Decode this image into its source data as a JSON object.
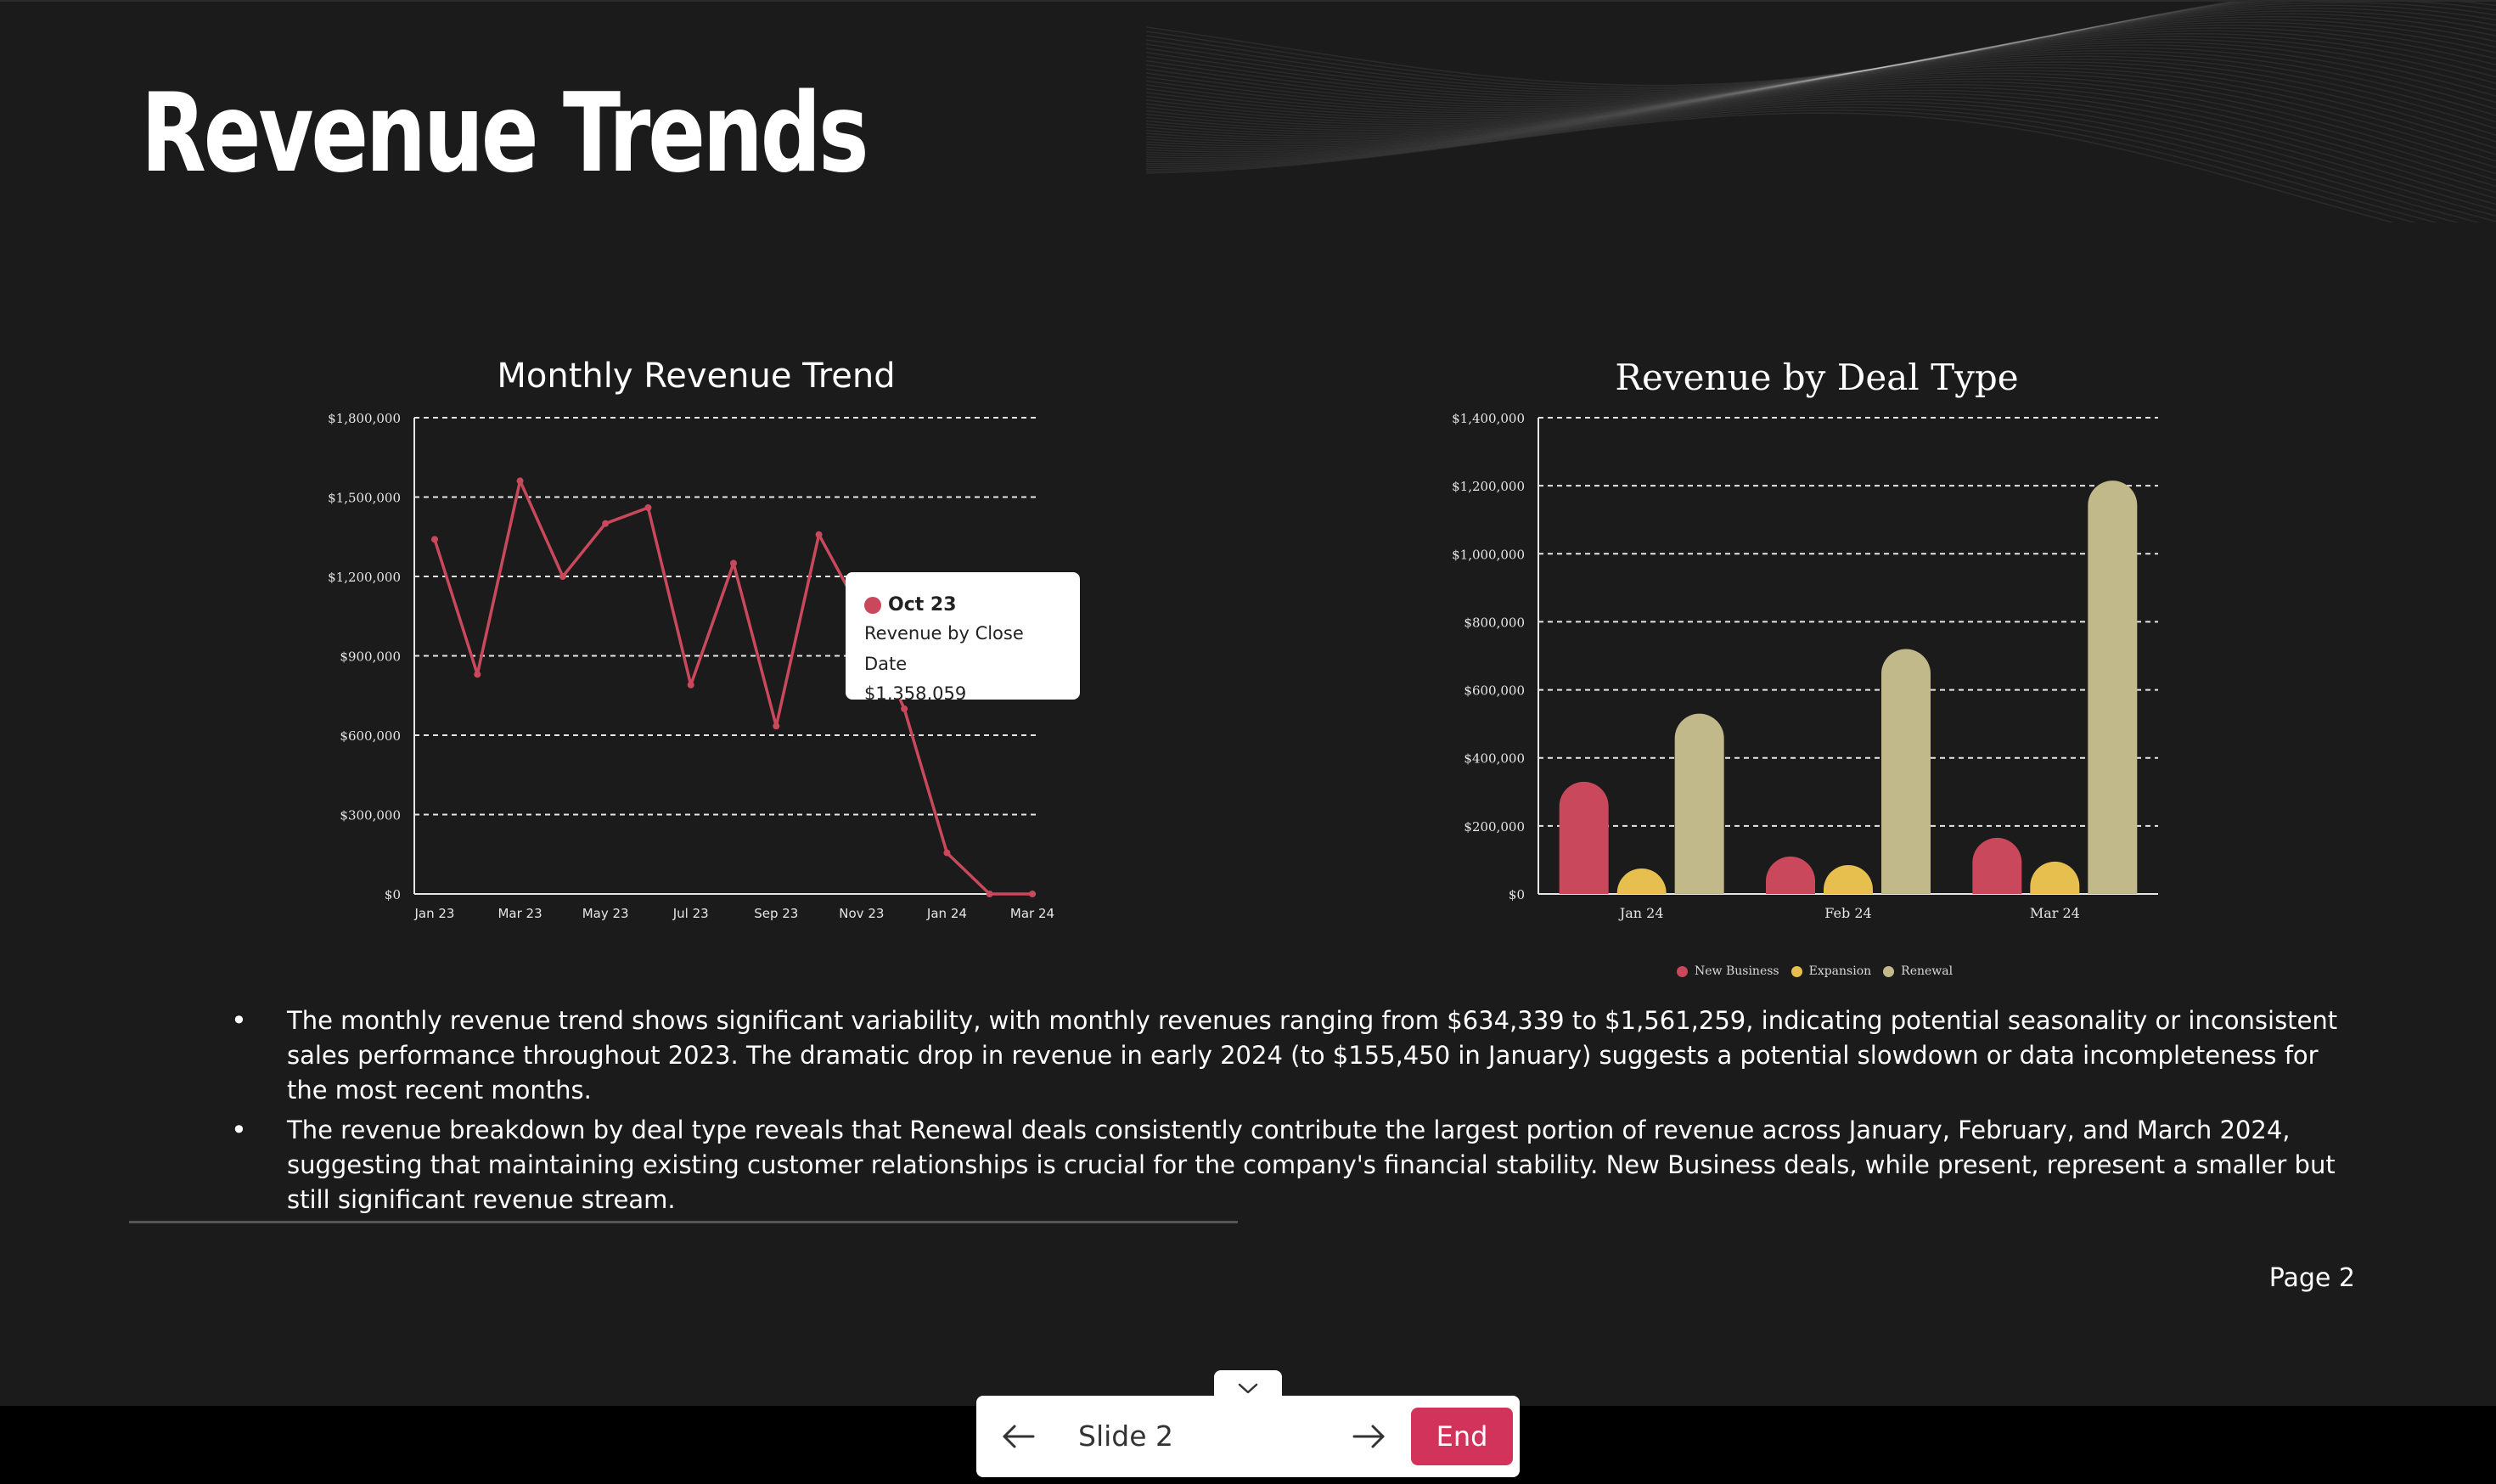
{
  "slide": {
    "title": "Revenue Trends",
    "bullets": [
      "The monthly revenue trend shows significant variability, with monthly revenues ranging from $634,339 to $1,561,259, indicating potential seasonality or inconsistent sales performance throughout 2023. The dramatic drop in revenue in early 2024 (to $155,450 in January) suggests a potential slowdown or data incompleteness for the most recent months.",
      "The revenue breakdown by deal type reveals that Renewal deals consistently contribute the largest portion of revenue across January, February, and March 2024, suggesting that maintaining existing customer relationships is crucial for the company's financial stability. New Business deals, while present, represent a smaller but still significant revenue stream."
    ],
    "bullet_glyph": "•",
    "page_label": "Page 2"
  },
  "tooltip": {
    "date": "Oct 23",
    "series": "Revenue by Close Date",
    "value": "$1,358,059"
  },
  "nav": {
    "slide_label": "Slide 2",
    "end_label": "End",
    "prev_icon": "arrow-left-icon",
    "next_icon": "arrow-right-icon",
    "collapse_icon": "chevron-down-icon"
  },
  "colors": {
    "line": "#c9485b",
    "new_business": "#c9485b",
    "expansion": "#e6bf4f",
    "renewal": "#c2b98a",
    "end_button": "#d2335a"
  },
  "chart_data": [
    {
      "type": "line",
      "title": "Monthly Revenue Trend",
      "x": [
        "Jan 23",
        "Feb 23",
        "Mar 23",
        "Apr 23",
        "May 23",
        "Jun 23",
        "Jul 23",
        "Aug 23",
        "Sep 23",
        "Oct 23",
        "Nov 23",
        "Dec 23",
        "Jan 24",
        "Feb 24",
        "Mar 24"
      ],
      "x_tick_labels": [
        "Jan 23",
        "Mar 23",
        "May 23",
        "Jul 23",
        "Sep 23",
        "Nov 23",
        "Jan 24",
        "Mar 24"
      ],
      "series": [
        {
          "name": "Revenue by Close Date",
          "values": [
            1340000,
            830000,
            1561259,
            1200000,
            1400000,
            1460000,
            790000,
            1250000,
            634339,
            1358059,
            1060000,
            700000,
            155450,
            0,
            0
          ]
        }
      ],
      "ylim": [
        0,
        1800000
      ],
      "y_ticks": [
        0,
        300000,
        600000,
        900000,
        1200000,
        1500000,
        1800000
      ],
      "y_tick_labels": [
        "$0",
        "$300,000",
        "$600,000",
        "$900,000",
        "$1,200,000",
        "$1,500,000",
        "$1,800,000"
      ],
      "grid": true
    },
    {
      "type": "bar",
      "title": "Revenue by Deal Type",
      "categories": [
        "Jan 24",
        "Feb 24",
        "Mar 24"
      ],
      "series": [
        {
          "name": "New Business",
          "values": [
            330000,
            110000,
            165000
          ]
        },
        {
          "name": "Expansion",
          "values": [
            75000,
            85000,
            95000
          ]
        },
        {
          "name": "Renewal",
          "values": [
            530000,
            720000,
            1215000
          ]
        }
      ],
      "ylim": [
        0,
        1400000
      ],
      "y_ticks": [
        0,
        200000,
        400000,
        600000,
        800000,
        1000000,
        1200000,
        1400000
      ],
      "y_tick_labels": [
        "$0",
        "$200,000",
        "$400,000",
        "$600,000",
        "$800,000",
        "$1,000,000",
        "$1,200,000",
        "$1,400,000"
      ],
      "grid": true,
      "legend_position": "bottom"
    }
  ]
}
